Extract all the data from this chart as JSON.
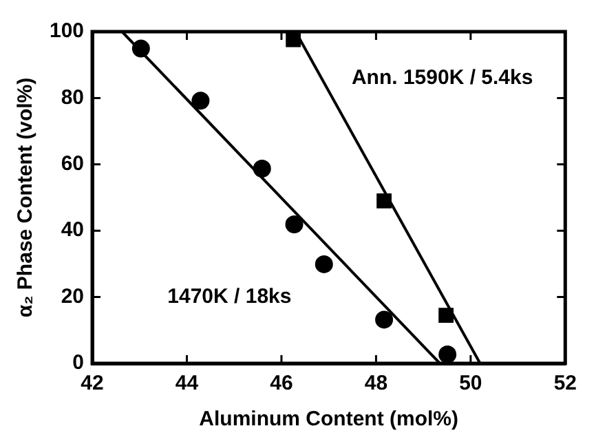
{
  "chart_data": {
    "type": "scatter",
    "xlabel": "Aluminum Content (mol%)",
    "ylabel": "α₂ Phase Content (vol%)",
    "xlim": [
      42,
      52
    ],
    "xticks": [
      42,
      44,
      46,
      48,
      50,
      52
    ],
    "ylim": [
      0,
      100
    ],
    "yticks": [
      0,
      20,
      40,
      60,
      80,
      100
    ],
    "grid": false,
    "legend": false,
    "series": [
      {
        "marker": "circle",
        "color": "#000000",
        "x": [
          43.03,
          44.29,
          45.59,
          46.27,
          46.9,
          48.17,
          49.51
        ],
        "values": [
          94.9,
          79.2,
          58.7,
          41.9,
          29.9,
          13.2,
          2.7
        ]
      },
      {
        "marker": "square",
        "color": "#000000",
        "x": [
          46.25,
          48.17,
          49.48
        ],
        "values": [
          97.6,
          49.0,
          14.5
        ]
      },
      {
        "type": "line",
        "marker": "none",
        "color": "#000000",
        "x": [
          42.63,
          49.35
        ],
        "values": [
          100,
          0
        ]
      },
      {
        "type": "line",
        "marker": "none",
        "color": "#000000",
        "x": [
          46.3,
          50.2
        ],
        "values": [
          100,
          0
        ]
      }
    ],
    "annotations": [
      "1470K / 18ks",
      "Ann. 1590K / 5.4ks"
    ]
  }
}
